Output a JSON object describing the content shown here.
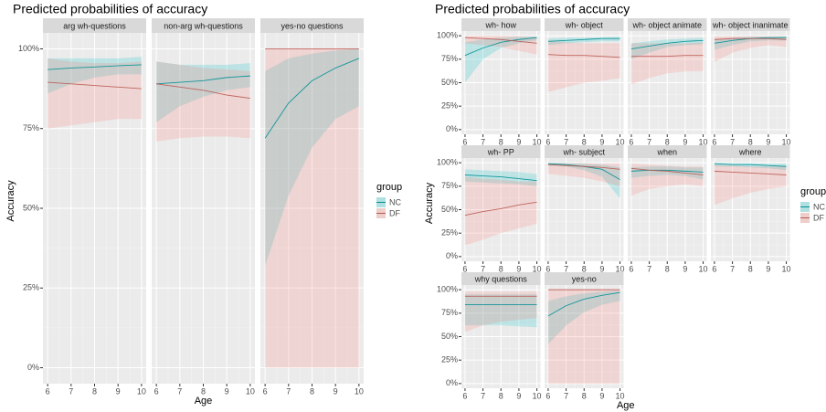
{
  "chart_data": [
    {
      "type": "line",
      "title": "Predicted probabilities of accuracy",
      "xlabel": "Age",
      "ylabel": "Accuracy",
      "legend_title": "group",
      "legend": "right",
      "x": [
        6,
        7,
        8,
        9,
        10
      ],
      "xlim": [
        5.8,
        10.2
      ],
      "ylim": [
        -5,
        105
      ],
      "xticks": [
        6,
        7,
        8,
        9,
        10
      ],
      "yticks": [
        {
          "value": 0,
          "label": "0%"
        },
        {
          "value": 25,
          "label": "25%"
        },
        {
          "value": 50,
          "label": "50%"
        },
        {
          "value": 75,
          "label": "75%"
        },
        {
          "value": 100,
          "label": "100%"
        }
      ],
      "facets": [
        {
          "title": "arg wh-questions",
          "series": [
            {
              "name": "NC",
              "color": "#00BFC4",
              "values": [
                93.5,
                94,
                94.3,
                94.7,
                95
              ],
              "lower": [
                86,
                89,
                91,
                92,
                92
              ],
              "upper": [
                97,
                97,
                97,
                97,
                97.5
              ]
            },
            {
              "name": "DF",
              "color": "#F8766D",
              "values": [
                89.5,
                89,
                88.5,
                88,
                87.5
              ],
              "lower": [
                75,
                76,
                77,
                78,
                78
              ],
              "upper": [
                97,
                96,
                95.5,
                95.5,
                96
              ]
            }
          ]
        },
        {
          "title": "non-arg wh-questions",
          "series": [
            {
              "name": "NC",
              "color": "#00BFC4",
              "values": [
                89,
                89.5,
                90,
                91,
                91.5
              ],
              "lower": [
                77,
                82,
                85,
                87,
                88
              ],
              "upper": [
                96,
                95,
                95,
                95,
                95.5
              ]
            },
            {
              "name": "DF",
              "color": "#F8766D",
              "values": [
                89,
                88,
                87,
                85.5,
                84.5
              ],
              "lower": [
                71,
                72,
                72.5,
                72.5,
                72
              ],
              "upper": [
                96,
                95,
                94,
                93.5,
                93
              ]
            }
          ]
        },
        {
          "title": "yes-no questions",
          "series": [
            {
              "name": "NC",
              "color": "#00BFC4",
              "values": [
                72,
                83,
                90,
                94,
                97
              ],
              "lower": [
                32,
                54,
                69,
                78,
                82
              ],
              "upper": [
                93,
                97,
                98.5,
                99.5,
                100
              ]
            },
            {
              "name": "DF",
              "color": "#F8766D",
              "values": [
                100,
                100,
                100,
                100,
                100
              ],
              "lower": [
                0,
                0,
                0,
                0,
                0
              ],
              "upper": [
                100,
                100,
                100,
                100,
                100
              ]
            }
          ]
        }
      ]
    },
    {
      "type": "line",
      "title": "Predicted probabilities of accuracy",
      "xlabel": "Age",
      "ylabel": "Accuracy",
      "legend_title": "group",
      "legend": "right",
      "x": [
        6,
        7,
        8,
        9,
        10
      ],
      "xlim": [
        5.8,
        10.2
      ],
      "ylim": [
        -5,
        105
      ],
      "xticks": [
        6,
        7,
        8,
        9,
        10
      ],
      "yticks": [
        {
          "value": 0,
          "label": "0%"
        },
        {
          "value": 25,
          "label": "25%"
        },
        {
          "value": 50,
          "label": "50%"
        },
        {
          "value": 75,
          "label": "75%"
        },
        {
          "value": 100,
          "label": "100%"
        }
      ],
      "facets": [
        {
          "title": "wh- how",
          "series": [
            {
              "name": "NC",
              "color": "#00BFC4",
              "values": [
                79,
                87,
                93,
                96,
                98
              ],
              "lower": [
                50,
                75,
                87,
                92,
                95
              ],
              "upper": [
                93,
                96,
                98,
                99,
                99.5
              ]
            },
            {
              "name": "DF",
              "color": "#F8766D",
              "values": [
                98,
                97,
                96,
                94,
                92
              ],
              "lower": [
                92,
                90,
                88,
                84,
                80
              ],
              "upper": [
                100,
                100,
                100,
                99.5,
                99
              ]
            }
          ]
        },
        {
          "title": "wh- object",
          "series": [
            {
              "name": "NC",
              "color": "#00BFC4",
              "values": [
                94,
                95,
                96,
                97,
                97
              ],
              "lower": [
                90,
                92,
                93,
                94,
                94
              ],
              "upper": [
                97,
                98,
                98,
                98.5,
                99
              ]
            },
            {
              "name": "DF",
              "color": "#F8766D",
              "values": [
                80,
                79,
                79,
                78,
                77
              ],
              "lower": [
                40,
                45,
                50,
                52,
                55
              ],
              "upper": [
                95,
                93,
                92,
                92,
                92
              ]
            }
          ]
        },
        {
          "title": "wh- object animate",
          "series": [
            {
              "name": "NC",
              "color": "#00BFC4",
              "values": [
                86,
                89,
                92,
                94,
                95
              ],
              "lower": [
                75,
                82,
                88,
                90,
                91
              ],
              "upper": [
                92,
                94,
                96,
                97,
                98
              ]
            },
            {
              "name": "DF",
              "color": "#F8766D",
              "values": [
                78,
                78,
                78,
                79,
                79
              ],
              "lower": [
                48,
                55,
                60,
                62,
                62
              ],
              "upper": [
                92,
                92,
                92,
                92,
                93
              ]
            }
          ]
        },
        {
          "title": "wh- object inanimate",
          "series": [
            {
              "name": "NC",
              "color": "#00BFC4",
              "values": [
                92,
                95,
                97,
                98,
                98
              ],
              "lower": [
                85,
                90,
                94,
                95,
                95
              ],
              "upper": [
                96,
                98,
                99,
                99,
                99.5
              ]
            },
            {
              "name": "DF",
              "color": "#F8766D",
              "values": [
                96,
                97,
                97,
                97,
                96
              ],
              "lower": [
                72,
                82,
                87,
                90,
                88
              ],
              "upper": [
                99.5,
                99.5,
                99.5,
                99.5,
                99.5
              ]
            }
          ]
        },
        {
          "title": "wh- PP",
          "series": [
            {
              "name": "NC",
              "color": "#00BFC4",
              "values": [
                87,
                86,
                85,
                83,
                81
              ],
              "lower": [
                80,
                79,
                78,
                77,
                75
              ],
              "upper": [
                93,
                92,
                91,
                90,
                88
              ]
            },
            {
              "name": "DF",
              "color": "#F8766D",
              "values": [
                44,
                48,
                51,
                55,
                58
              ],
              "lower": [
                12,
                18,
                25,
                30,
                35
              ],
              "upper": [
                85,
                83,
                82,
                80,
                80
              ]
            }
          ]
        },
        {
          "title": "wh- subject",
          "series": [
            {
              "name": "NC",
              "color": "#00BFC4",
              "values": [
                99,
                98,
                96,
                93,
                82
              ],
              "lower": [
                97,
                96,
                92,
                85,
                62
              ],
              "upper": [
                100,
                99.5,
                99,
                98,
                95
              ]
            },
            {
              "name": "DF",
              "color": "#F8766D",
              "values": [
                98,
                97,
                96,
                95,
                93
              ],
              "lower": [
                88,
                86,
                84,
                80,
                75
              ],
              "upper": [
                99.5,
                99.5,
                99.5,
                99,
                99
              ]
            }
          ]
        },
        {
          "title": "when",
          "series": [
            {
              "name": "NC",
              "color": "#00BFC4",
              "values": [
                91,
                92,
                92,
                91,
                90
              ],
              "lower": [
                84,
                86,
                87,
                86,
                82
              ],
              "upper": [
                95,
                96,
                96,
                95,
                95
              ]
            },
            {
              "name": "DF",
              "color": "#F8766D",
              "values": [
                94,
                92,
                91,
                89,
                87
              ],
              "lower": [
                65,
                72,
                75,
                77,
                75
              ],
              "upper": [
                99,
                98,
                97,
                96,
                96
              ]
            }
          ]
        },
        {
          "title": "where",
          "series": [
            {
              "name": "NC",
              "color": "#00BFC4",
              "values": [
                99,
                98,
                98,
                97,
                96
              ],
              "lower": [
                96,
                96,
                95,
                94,
                92
              ],
              "upper": [
                100,
                99.5,
                99.5,
                99,
                99
              ]
            },
            {
              "name": "DF",
              "color": "#F8766D",
              "values": [
                91,
                90,
                89,
                88,
                87
              ],
              "lower": [
                55,
                62,
                68,
                72,
                75
              ],
              "upper": [
                98,
                97,
                96,
                96,
                96
              ]
            }
          ]
        },
        {
          "title": "why questions",
          "series": [
            {
              "name": "NC",
              "color": "#00BFC4",
              "values": [
                84,
                84,
                84,
                84,
                84
              ],
              "lower": [
                62,
                62,
                62,
                61,
                60
              ],
              "upper": [
                95,
                95,
                95,
                95,
                95
              ]
            },
            {
              "name": "DF",
              "color": "#F8766D",
              "values": [
                93,
                93,
                93,
                93,
                93
              ],
              "lower": [
                55,
                62,
                66,
                68,
                70
              ],
              "upper": [
                98,
                98,
                98,
                98,
                98
              ]
            }
          ]
        },
        {
          "title": "yes-no",
          "series": [
            {
              "name": "NC",
              "color": "#00BFC4",
              "values": [
                72,
                83,
                90,
                94,
                97
              ],
              "lower": [
                42,
                62,
                76,
                84,
                88
              ],
              "upper": [
                88,
                93,
                96,
                98,
                99
              ]
            },
            {
              "name": "DF",
              "color": "#F8766D",
              "values": [
                100,
                100,
                100,
                100,
                100
              ],
              "lower": [
                0,
                0,
                0,
                0,
                0
              ],
              "upper": [
                100,
                100,
                100,
                100,
                100
              ]
            }
          ]
        }
      ]
    }
  ]
}
